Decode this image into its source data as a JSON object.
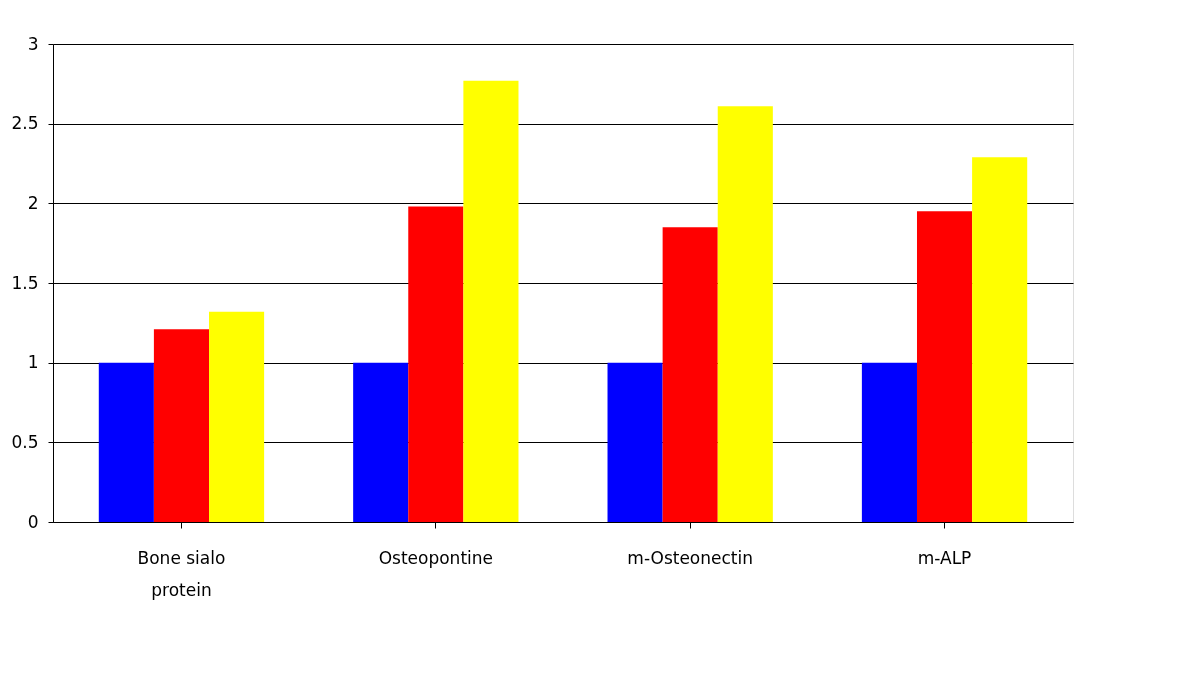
{
  "chart_data": {
    "type": "bar",
    "categories": [
      "Bone sialo protein",
      "Osteopontine",
      "m-Osteonectin",
      "m-ALP"
    ],
    "series": [
      {
        "color": "#0000ff",
        "values": [
          1,
          1,
          1,
          1
        ]
      },
      {
        "color": "#ff0000",
        "values": [
          1.21,
          1.98,
          1.85,
          1.95
        ]
      },
      {
        "color": "#ffff00",
        "values": [
          1.32,
          2.77,
          2.61,
          2.29
        ]
      }
    ],
    "ylim": [
      0,
      3
    ],
    "yticks": [
      0,
      0.5,
      1,
      1.5,
      2,
      2.5,
      3
    ],
    "grid": "y",
    "legend": false
  }
}
